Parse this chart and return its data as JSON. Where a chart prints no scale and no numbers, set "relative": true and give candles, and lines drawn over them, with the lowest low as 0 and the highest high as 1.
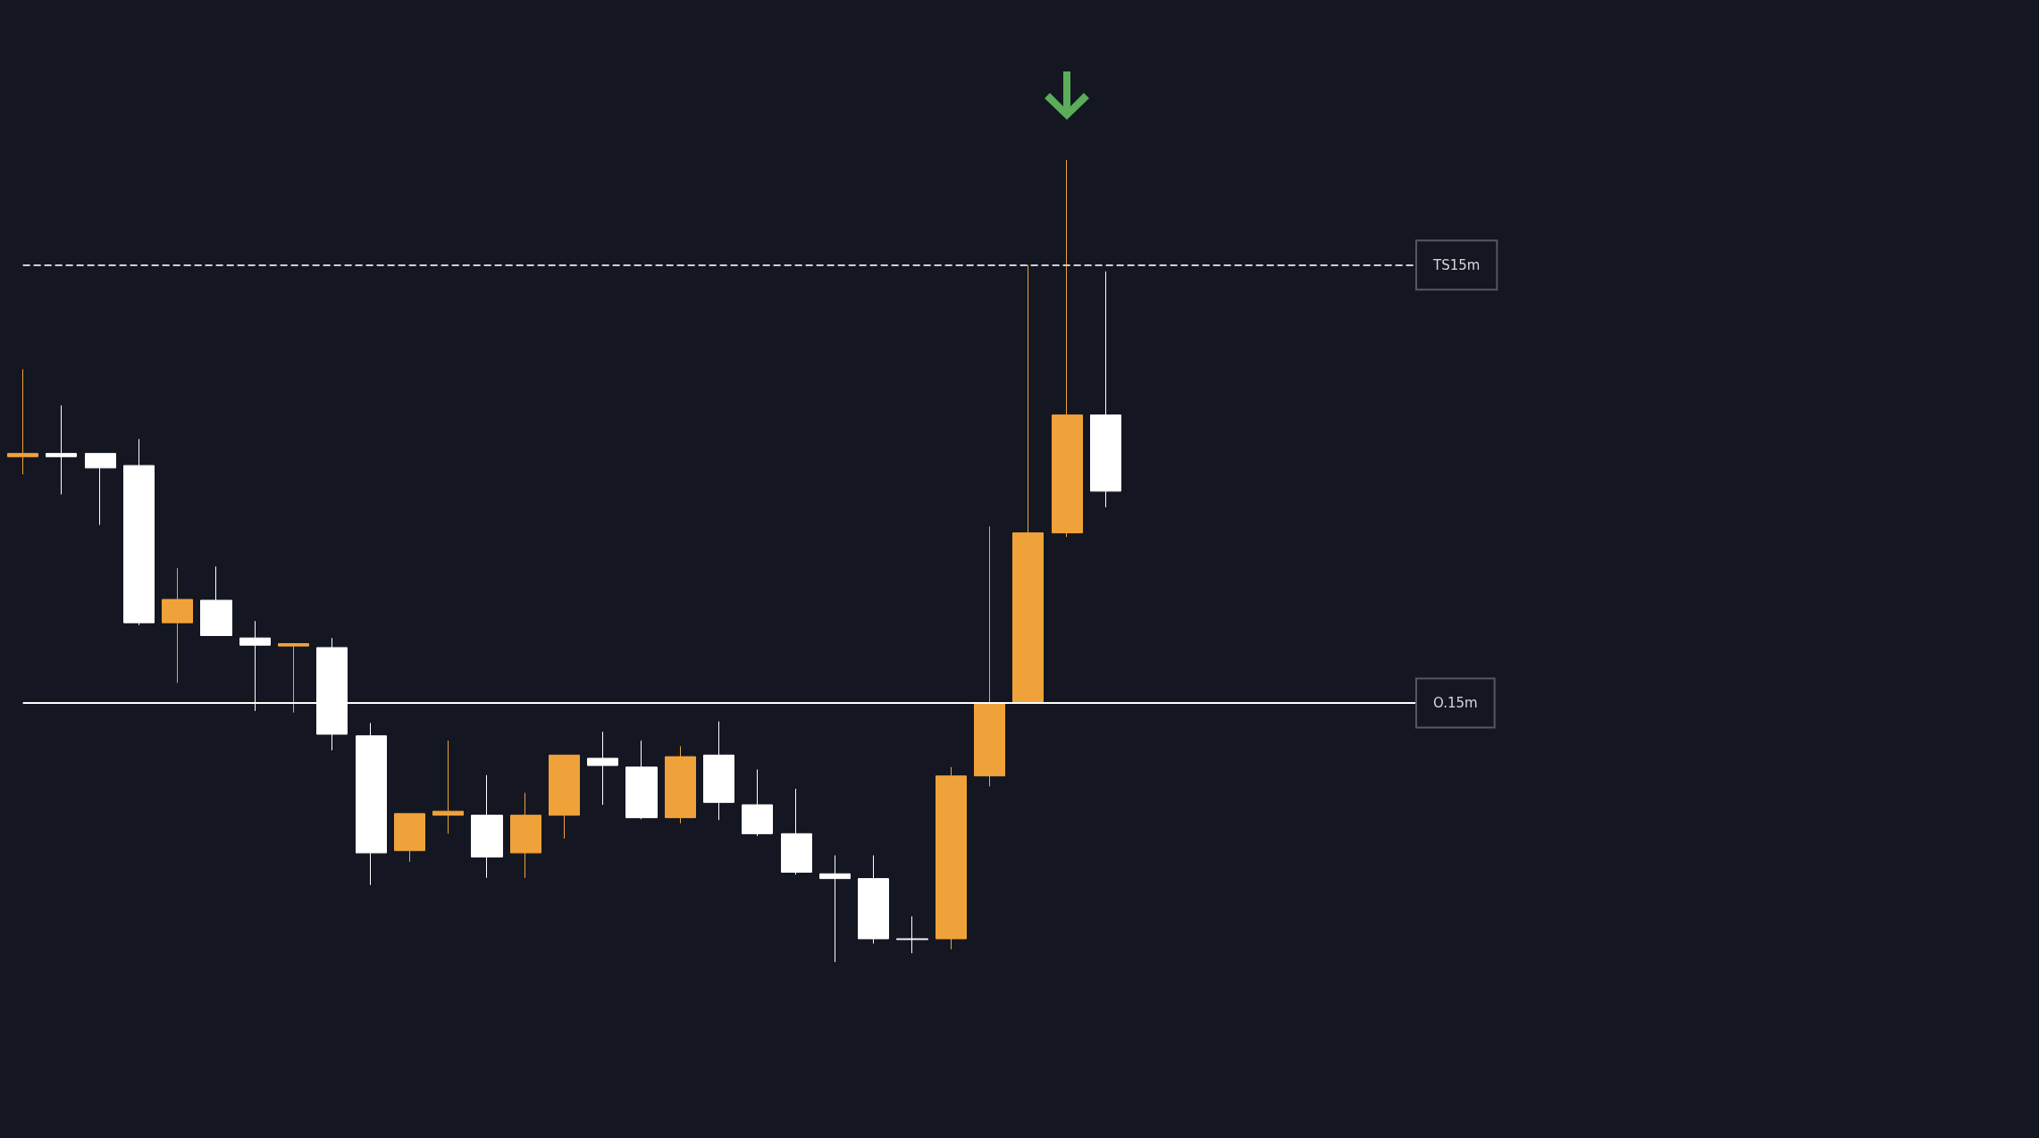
{
  "chart_data": {
    "type": "candlestick",
    "relative": true,
    "categories": [
      null,
      null,
      null,
      null,
      null,
      null,
      null,
      null,
      null,
      null,
      null,
      null,
      null,
      null,
      null,
      null,
      null,
      null,
      null,
      null,
      null,
      null,
      null,
      null,
      null,
      null,
      null,
      null,
      null
    ],
    "ohlc": [
      [
        0.63,
        0.739,
        0.608,
        0.634
      ],
      [
        0.634,
        0.694,
        0.583,
        0.63
      ],
      [
        0.634,
        0.634,
        0.545,
        0.616
      ],
      [
        0.619,
        0.652,
        0.42,
        0.423
      ],
      [
        0.423,
        0.491,
        0.348,
        0.452
      ],
      [
        0.451,
        0.493,
        0.407,
        0.407
      ],
      [
        0.404,
        0.425,
        0.313,
        0.395
      ],
      [
        0.394,
        0.397,
        0.311,
        0.397
      ],
      [
        0.392,
        0.404,
        0.264,
        0.284
      ],
      [
        0.282,
        0.298,
        0.096,
        0.136
      ],
      [
        0.139,
        0.185,
        0.125,
        0.185
      ],
      [
        0.183,
        0.276,
        0.16,
        0.188
      ],
      [
        0.183,
        0.233,
        0.105,
        0.131
      ],
      [
        0.136,
        0.211,
        0.105,
        0.183
      ],
      [
        0.183,
        0.258,
        0.154,
        0.258
      ],
      [
        0.254,
        0.287,
        0.196,
        0.245
      ],
      [
        0.243,
        0.276,
        0.178,
        0.18
      ],
      [
        0.18,
        0.269,
        0.173,
        0.256
      ],
      [
        0.258,
        0.3,
        0.177,
        0.199
      ],
      [
        0.196,
        0.24,
        0.157,
        0.16
      ],
      [
        0.16,
        0.216,
        0.109,
        0.112
      ],
      [
        0.11,
        0.133,
        0,
        0.104
      ],
      [
        0.104,
        0.133,
        0.023,
        0.029
      ],
      [
        0.029,
        0.057,
        0.011,
        0.028
      ],
      [
        0.029,
        0.243,
        0.016,
        0.232
      ],
      [
        0.232,
        0.543,
        0.219,
        0.323
      ],
      [
        0.323,
        0.869,
        0.323,
        0.535
      ],
      [
        0.535,
        1,
        0.53,
        0.682
      ],
      [
        0.682,
        0.861,
        0.567,
        0.587
      ]
    ],
    "colors": [
      "#f0a23a",
      "#ffffff",
      "#ffffff",
      "#ffffff",
      "#f0a23a",
      "#ffffff",
      "#ffffff",
      "#f0a23a",
      "#ffffff",
      "#ffffff",
      "#f0a23a",
      "#f0a23a",
      "#ffffff",
      "#f0a23a",
      "#f0a23a",
      "#ffffff",
      "#ffffff",
      "#f0a23a",
      "#ffffff",
      "#ffffff",
      "#ffffff",
      "#ffffff",
      "#ffffff",
      "#ffffff",
      "#f0a23a",
      "#f0a23a",
      "#f0a23a",
      "#f0a23a",
      "#ffffff"
    ],
    "ref_lines": [
      {
        "axis": "y",
        "value": 0.869,
        "label": "TS15m",
        "color": "#cfcfcf",
        "line_style": "dashed"
      },
      {
        "axis": "y",
        "value": 0.323,
        "label": "O.15m",
        "color": "#ffffff",
        "line_style": "solid"
      }
    ],
    "grid": false
  }
}
